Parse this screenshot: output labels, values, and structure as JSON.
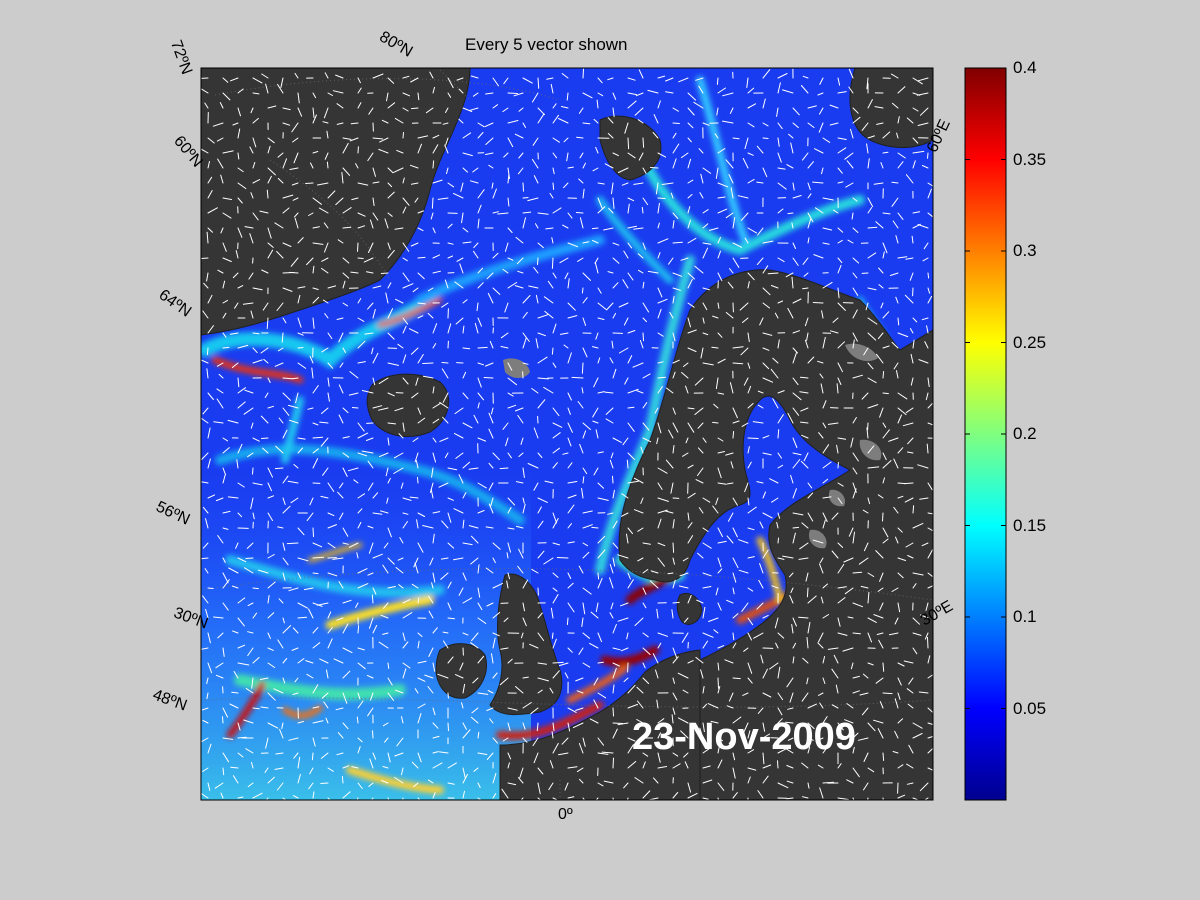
{
  "figure": {
    "title": "Every 5 vector shown",
    "date": "23-Nov-2009",
    "lat_labels": [
      "72ºN",
      "80ºN",
      "60ºN",
      "64ºN",
      "56ºN",
      "30ºN",
      "48ºN"
    ],
    "lon_labels": [
      "0º",
      "30ºE",
      "60ºE"
    ],
    "colors": {
      "background": "#cccccc",
      "land": "#353535",
      "ice": "#7d7d7d",
      "vector": "#ffffff"
    }
  },
  "colorbar": {
    "colormap": "jet",
    "min": 0,
    "max": 0.4,
    "ticks": [
      "0.4",
      "0.35",
      "0.3",
      "0.25",
      "0.2",
      "0.15",
      "0.1",
      "0.05"
    ]
  }
}
